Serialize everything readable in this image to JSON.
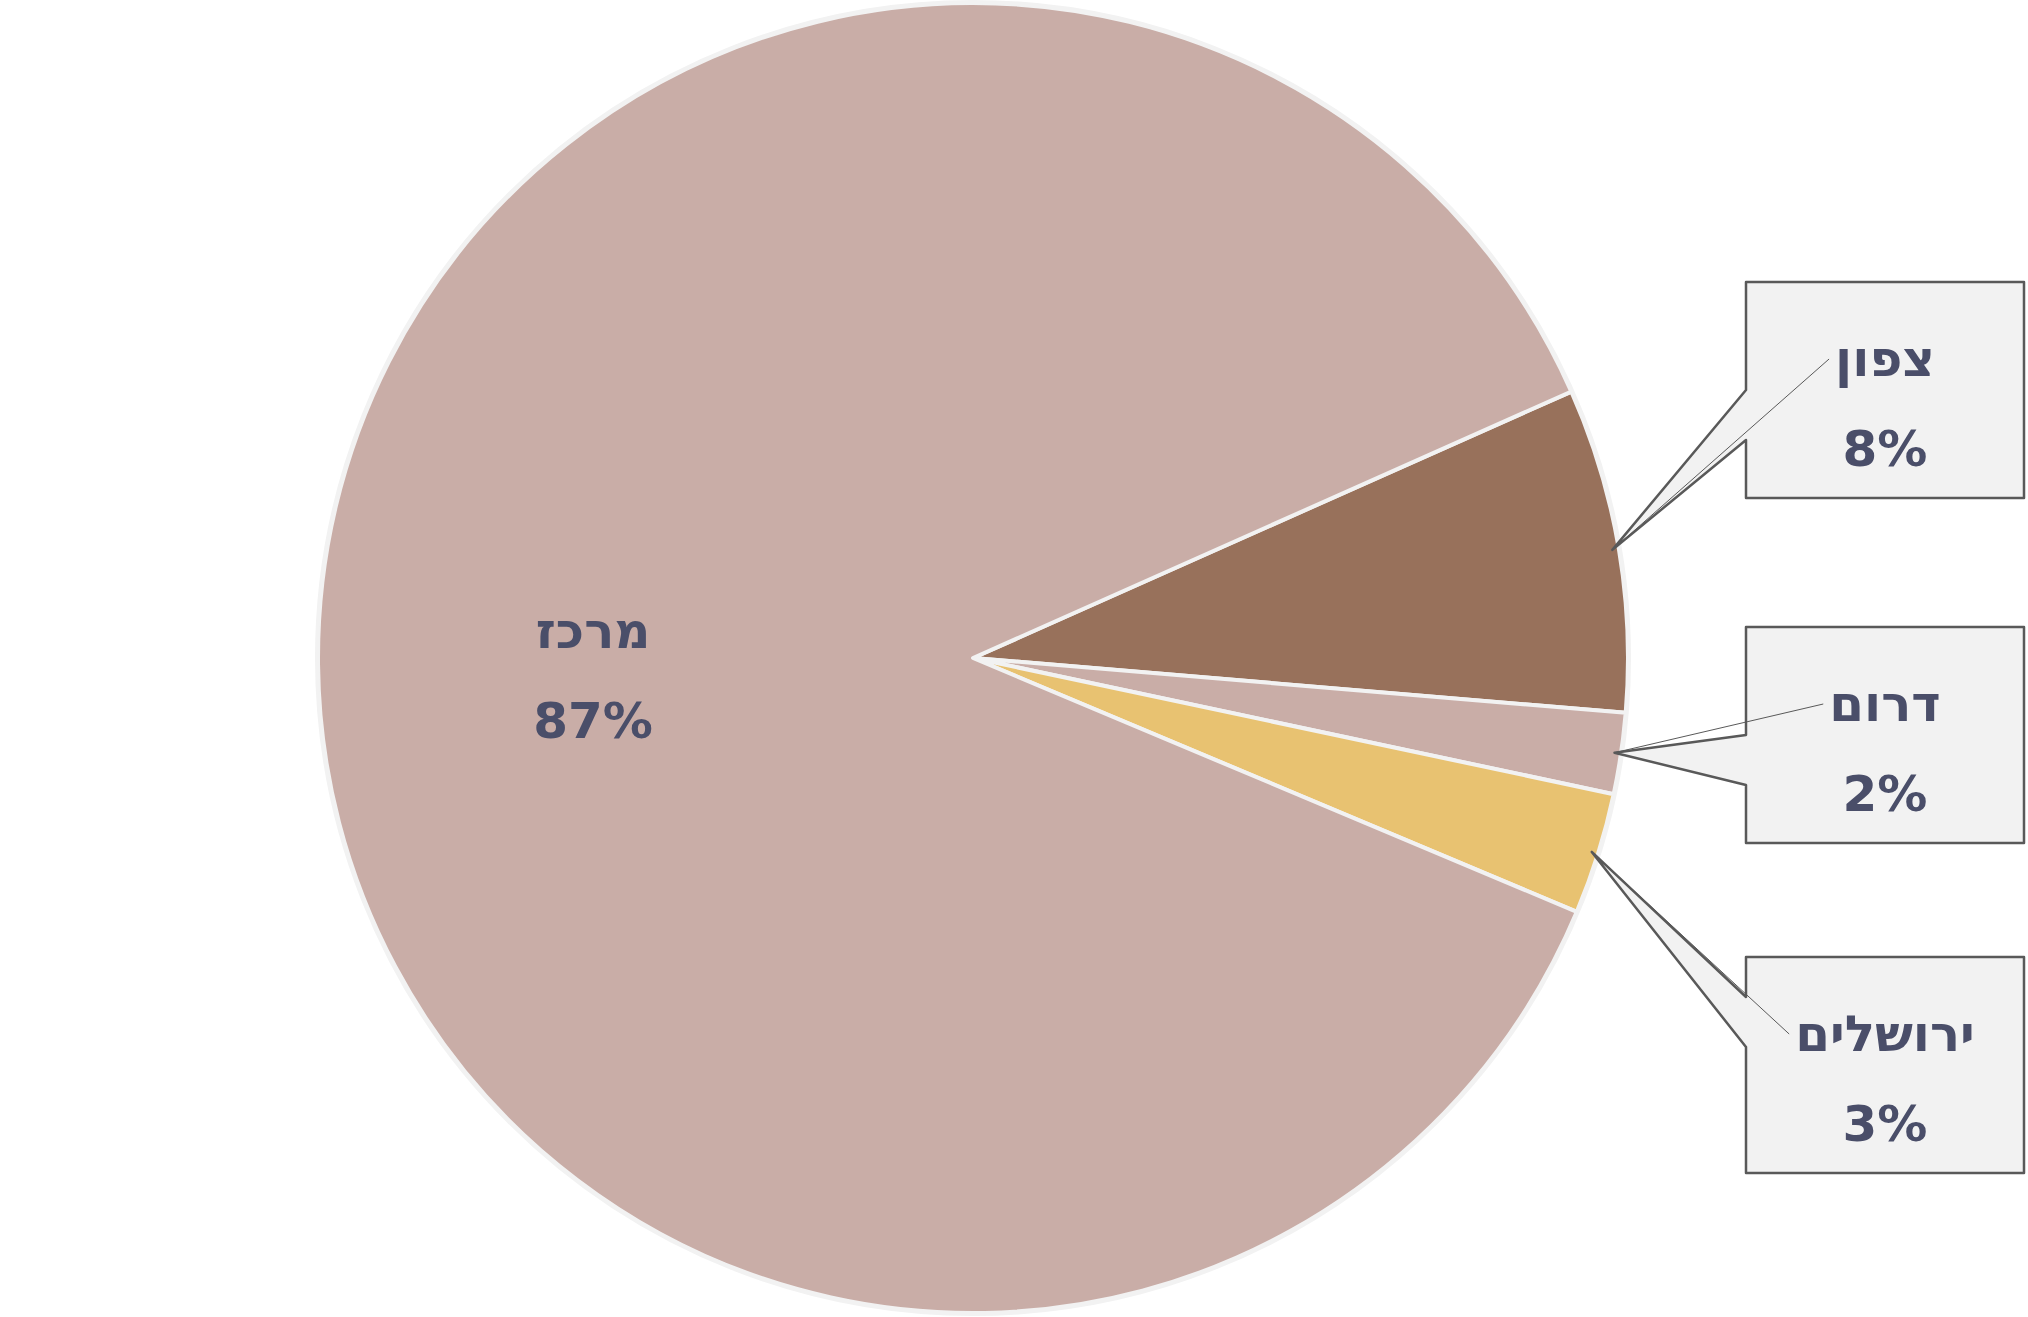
{
  "chart_data": {
    "type": "pie",
    "categories": [
      "צפון",
      "דרום",
      "ירושלים",
      "מרכז"
    ],
    "values": [
      8,
      2,
      3,
      87
    ],
    "value_labels": [
      "8%",
      "2%",
      "3%",
      "87%"
    ],
    "colors": [
      "#98715b",
      "#c9ada7",
      "#e8c271",
      "#c9ada7"
    ]
  }
}
